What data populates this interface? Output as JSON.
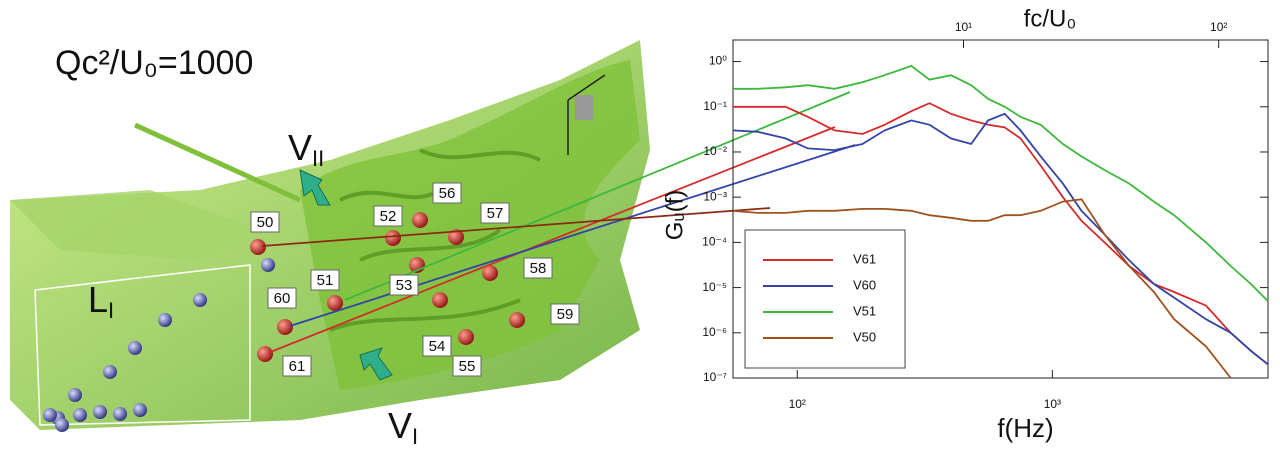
{
  "visualization": {
    "title": "Qc²/U₀=1000",
    "vortex_upper": {
      "base": "V",
      "sub": "II"
    },
    "vortex_lower": {
      "base": "V",
      "sub": "I"
    },
    "leading_edge": {
      "base": "L",
      "sub": "I"
    },
    "probes": [
      "50",
      "52",
      "56",
      "57",
      "51",
      "53",
      "58",
      "60",
      "54",
      "59",
      "61",
      "55"
    ]
  },
  "chart_data": {
    "type": "line",
    "log_x": true,
    "log_y": true,
    "xlabel": "f(Hz)",
    "ylabel": "Gᵤ(f)",
    "x2label": "fc/U₀",
    "xlim": [
      56,
      7000
    ],
    "ylim": [
      1e-07,
      3
    ],
    "x2lim": [
      1.25,
      156
    ],
    "xticks": [
      {
        "value": 100,
        "label": "10²"
      },
      {
        "value": 1000,
        "label": "10³"
      }
    ],
    "x2ticks": [
      {
        "value": 10,
        "label": "10¹"
      },
      {
        "value": 100,
        "label": "10²"
      }
    ],
    "yticks": [
      {
        "value": 1,
        "label": "10⁰"
      },
      {
        "value": 0.1,
        "label": "10⁻¹"
      },
      {
        "value": 0.01,
        "label": "10⁻²"
      },
      {
        "value": 0.001,
        "label": "10⁻³"
      },
      {
        "value": 0.0001,
        "label": "10⁻⁴"
      },
      {
        "value": 1e-05,
        "label": "10⁻⁵"
      },
      {
        "value": 1e-06,
        "label": "10⁻⁶"
      },
      {
        "value": 1e-07,
        "label": "10⁻⁷"
      }
    ],
    "legend": "lower left",
    "x": [
      56,
      70,
      90,
      110,
      140,
      180,
      220,
      280,
      330,
      400,
      480,
      560,
      650,
      750,
      900,
      1100,
      1300,
      1600,
      2000,
      2500,
      3000,
      4000,
      5000,
      6000,
      7000
    ],
    "series": [
      {
        "name": "V61",
        "color": "#d42a2a",
        "values": [
          0.1,
          0.1,
          0.1,
          0.06,
          0.03,
          0.025,
          0.04,
          0.08,
          0.12,
          0.07,
          0.05,
          0.04,
          0.035,
          0.02,
          0.005,
          0.001,
          0.0003,
          0.0001,
          3e-05,
          1.2e-05,
          8e-06,
          4e-06,
          1e-06,
          4e-07,
          2e-07
        ]
      },
      {
        "name": "V60",
        "color": "#3344a8",
        "values": [
          0.03,
          0.028,
          0.02,
          0.012,
          0.011,
          0.015,
          0.03,
          0.05,
          0.04,
          0.02,
          0.015,
          0.05,
          0.07,
          0.03,
          0.008,
          0.002,
          0.0005,
          0.00015,
          4e-05,
          1.2e-05,
          6e-06,
          2e-06,
          1e-06,
          4e-07,
          2e-07
        ]
      },
      {
        "name": "V51",
        "color": "#3cb83c",
        "values": [
          0.25,
          0.25,
          0.27,
          0.3,
          0.25,
          0.35,
          0.5,
          0.8,
          0.4,
          0.5,
          0.3,
          0.15,
          0.1,
          0.06,
          0.04,
          0.015,
          0.008,
          0.004,
          0.002,
          0.0008,
          0.0004,
          0.0001,
          3e-05,
          1.2e-05,
          5e-06
        ]
      },
      {
        "name": "V50",
        "color": "#a0521e",
        "values": [
          0.0005,
          0.00045,
          0.00045,
          0.0005,
          0.0005,
          0.00055,
          0.00055,
          0.0005,
          0.0004,
          0.00035,
          0.0003,
          0.0003,
          0.0004,
          0.0004,
          0.0005,
          0.0008,
          0.0009,
          0.00015,
          3e-05,
          8e-06,
          2e-06,
          5e-07,
          1e-07,
          null,
          null
        ]
      }
    ]
  }
}
